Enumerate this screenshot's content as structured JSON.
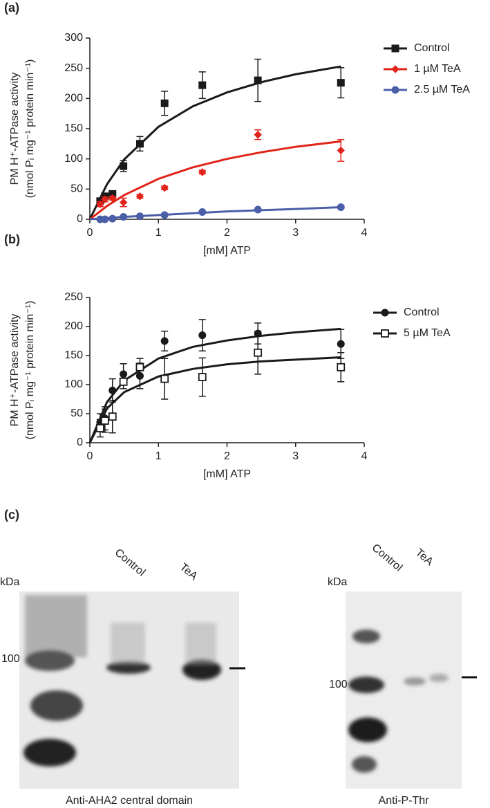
{
  "chart_data": [
    {
      "type": "line",
      "panel_label": "(a)",
      "xlabel": "[mM] ATP",
      "ylabel": [
        "PM H⁺-ATPase activity",
        "(nmol Pᵢ mg⁻¹ protein min⁻¹)"
      ],
      "xlim": [
        0,
        4
      ],
      "xticks": [
        0,
        1,
        2,
        3,
        4
      ],
      "ylim": [
        0,
        300
      ],
      "yticks": [
        0,
        50,
        100,
        150,
        200,
        250,
        300
      ],
      "x": [
        0.15,
        0.22,
        0.33,
        0.49,
        0.73,
        1.09,
        1.64,
        2.45,
        3.66
      ],
      "fit_x": [
        0,
        0.25,
        0.5,
        1,
        1.5,
        2,
        2.5,
        3,
        3.66
      ],
      "series": [
        {
          "name": "Control",
          "color": "#1a1a1a",
          "marker": "square",
          "filled": true,
          "values": [
            30,
            38,
            42,
            88,
            125,
            192,
            222,
            230,
            226
          ],
          "errors": [
            3,
            4,
            5,
            9,
            12,
            20,
            22,
            35,
            25
          ],
          "fit_values": [
            0,
            58,
            99,
            153,
            187,
            210,
            227,
            240,
            253
          ]
        },
        {
          "name": "1 µM TeA",
          "color": "#e2231a",
          "marker": "diamond",
          "filled": true,
          "values": [
            25,
            33,
            35,
            28,
            38,
            52,
            78,
            140,
            114
          ],
          "errors": [
            4,
            4,
            3,
            7,
            3,
            3,
            3,
            8,
            18
          ],
          "fit_values": [
            0,
            22,
            40,
            67,
            86,
            100,
            111,
            120,
            129
          ]
        },
        {
          "name": "2.5 µM TeA",
          "color": "#4a5fa8",
          "marker": "circle",
          "filled": true,
          "values": [
            0,
            0,
            1,
            4,
            5,
            7,
            12,
            16,
            20
          ],
          "errors": [
            1,
            1,
            1,
            1,
            1,
            1,
            1,
            1,
            2
          ],
          "fit_values": [
            0,
            2,
            4,
            7,
            10,
            13,
            15,
            17,
            20
          ]
        }
      ]
    },
    {
      "type": "line",
      "panel_label": "(b)",
      "xlabel": "[mM] ATP",
      "ylabel": [
        "PM H⁺-ATPase activity",
        "(nmol Pᵢ mg⁻¹ protein min⁻¹)"
      ],
      "xlim": [
        0,
        4
      ],
      "xticks": [
        0,
        1,
        2,
        3,
        4
      ],
      "ylim": [
        0,
        250
      ],
      "yticks": [
        0,
        50,
        100,
        150,
        200,
        250
      ],
      "x": [
        0.15,
        0.22,
        0.33,
        0.49,
        0.73,
        1.09,
        1.64,
        2.45,
        3.66
      ],
      "fit_x": [
        0,
        0.25,
        0.5,
        1,
        1.5,
        2,
        2.5,
        3,
        3.66
      ],
      "series": [
        {
          "name": "Control",
          "color": "#1a1a1a",
          "marker": "circle",
          "filled": true,
          "values": [
            35,
            42,
            90,
            118,
            115,
            175,
            185,
            188,
            170
          ],
          "errors": [
            15,
            20,
            20,
            18,
            22,
            17,
            27,
            18,
            25
          ],
          "fit_values": [
            0,
            70,
            107,
            145,
            165,
            176,
            184,
            190,
            196
          ]
        },
        {
          "name": "5 µM TeA",
          "color": "#1a1a1a",
          "marker": "square",
          "filled": false,
          "values": [
            25,
            38,
            45,
            105,
            130,
            110,
            113,
            155,
            130
          ],
          "errors": [
            15,
            20,
            28,
            12,
            15,
            35,
            33,
            37,
            25
          ],
          "fit_values": [
            0,
            59,
            87,
            114,
            127,
            135,
            140,
            143,
            147
          ]
        }
      ]
    }
  ],
  "blots": {
    "panel_label": "(c)",
    "left": {
      "kda": "kDa",
      "marker": "100",
      "lanes": [
        "Control",
        "TeA"
      ],
      "caption": "Anti-AHA2 central domain"
    },
    "right": {
      "kda": "kDa",
      "marker": "100",
      "lanes": [
        "Control",
        "TeA"
      ],
      "caption": "Anti-P-Thr"
    }
  }
}
